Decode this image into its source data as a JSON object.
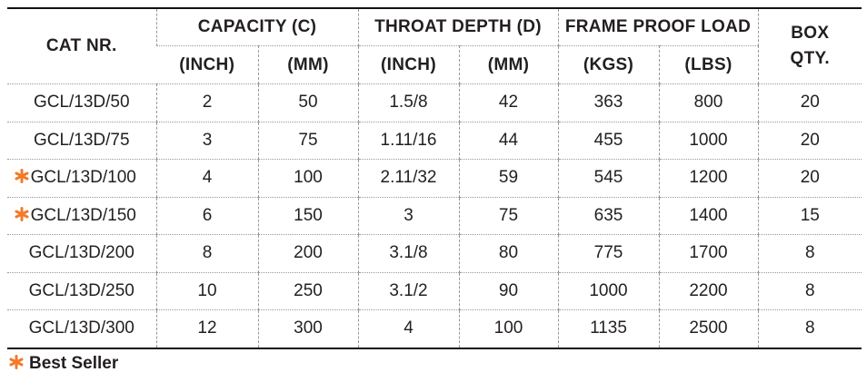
{
  "table": {
    "header": {
      "cat": "CAT NR.",
      "capacity": "CAPACITY (C)",
      "throat": "THROAT DEPTH (D)",
      "frame": "FRAME PROOF LOAD",
      "box": "BOX QTY.",
      "units": [
        "(INCH)",
        "(MM)",
        "(INCH)",
        "(MM)",
        "(KGS)",
        "(LBS)"
      ]
    },
    "rows": [
      {
        "best_seller": false,
        "cells": [
          "GCL/13D/50",
          "2",
          "50",
          "1.5/8",
          "42",
          "363",
          "800",
          "20"
        ]
      },
      {
        "best_seller": false,
        "cells": [
          "GCL/13D/75",
          "3",
          "75",
          "1.11/16",
          "44",
          "455",
          "1000",
          "20"
        ]
      },
      {
        "best_seller": true,
        "cells": [
          "GCL/13D/100",
          "4",
          "100",
          "2.11/32",
          "59",
          "545",
          "1200",
          "20"
        ]
      },
      {
        "best_seller": true,
        "cells": [
          "GCL/13D/150",
          "6",
          "150",
          "3",
          "75",
          "635",
          "1400",
          "15"
        ]
      },
      {
        "best_seller": false,
        "cells": [
          "GCL/13D/200",
          "8",
          "200",
          "3.1/8",
          "80",
          "775",
          "1700",
          "8"
        ]
      },
      {
        "best_seller": false,
        "cells": [
          "GCL/13D/250",
          "10",
          "250",
          "3.1/2",
          "90",
          "1000",
          "2200",
          "8"
        ]
      },
      {
        "best_seller": false,
        "cells": [
          "GCL/13D/300",
          "12",
          "300",
          "4",
          "100",
          "1135",
          "2500",
          "8"
        ]
      }
    ],
    "legend": "Best Seller"
  }
}
